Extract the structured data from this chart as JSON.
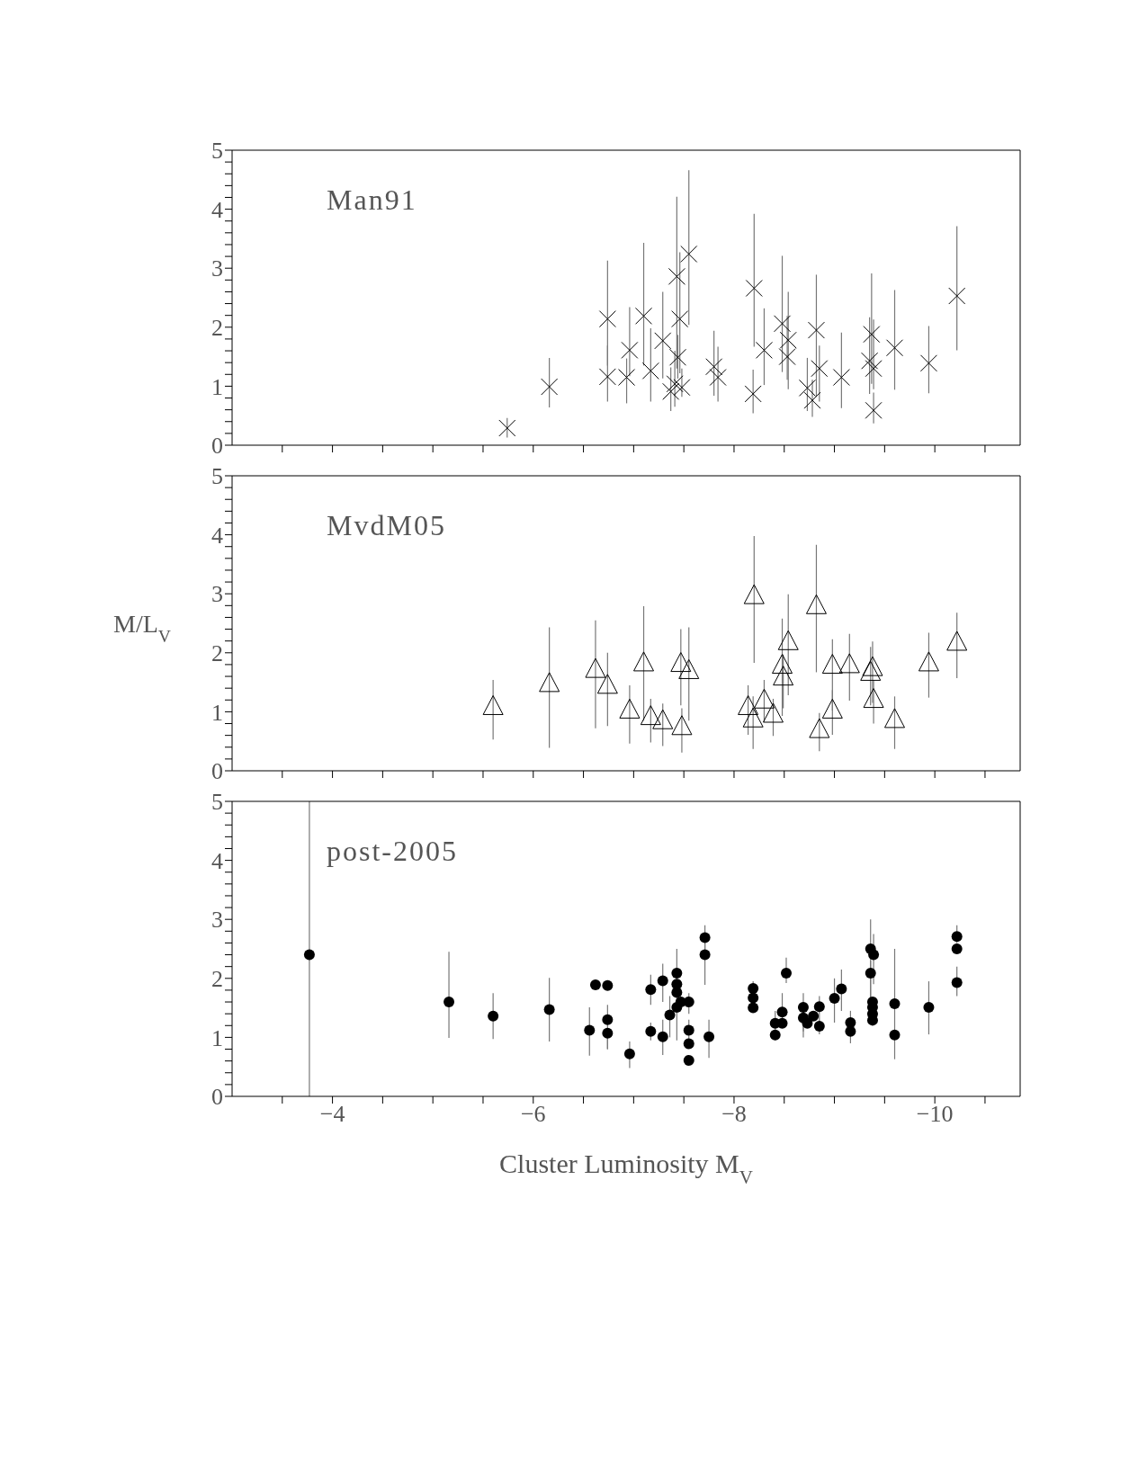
{
  "chart_data": [
    {
      "type": "scatter",
      "marker": "cross",
      "tick_labels": "y",
      "xlim": [
        -3,
        -10.85
      ],
      "ylim": [
        0,
        5
      ],
      "xticks": [
        {
          "value": -3.5,
          "label": null
        },
        -4,
        {
          "value": -4.5,
          "label": null
        },
        {
          "value": -5,
          "label": null
        },
        {
          "value": -5.5,
          "label": null
        },
        -6,
        {
          "value": -6.5,
          "label": null
        },
        {
          "value": -7,
          "label": null
        },
        {
          "value": -7.5,
          "label": null
        },
        -8,
        {
          "value": -8.5,
          "label": null
        },
        {
          "value": -9,
          "label": null
        },
        {
          "value": -9.5,
          "label": null
        },
        -10,
        {
          "value": -10.5,
          "label": null
        }
      ],
      "yticks": [
        0,
        {
          "value": 0.2,
          "label": null
        },
        {
          "value": 0.4,
          "label": null
        },
        {
          "value": 0.6,
          "label": null
        },
        {
          "value": 0.8,
          "label": null
        },
        1,
        {
          "value": 1.2,
          "label": null
        },
        {
          "value": 1.4,
          "label": null
        },
        {
          "value": 1.6,
          "label": null
        },
        {
          "value": 1.8,
          "label": null
        },
        2,
        {
          "value": 2.2,
          "label": null
        },
        {
          "value": 2.4,
          "label": null
        },
        {
          "value": 2.6,
          "label": null
        },
        {
          "value": 2.8,
          "label": null
        },
        3,
        {
          "value": 3.2,
          "label": null
        },
        {
          "value": 3.4,
          "label": null
        },
        {
          "value": 3.6,
          "label": null
        },
        {
          "value": 3.8,
          "label": null
        },
        4,
        {
          "value": 4.2,
          "label": null
        },
        {
          "value": 4.4,
          "label": null
        },
        {
          "value": 4.6,
          "label": null
        },
        {
          "value": 4.8,
          "label": null
        },
        5
      ],
      "series": [
        {
          "name": "Man91",
          "color": "#000000",
          "x": [
            -5.74,
            -6.16,
            -6.74,
            -6.74,
            -6.93,
            -6.96,
            -7.1,
            -7.17,
            -7.29,
            -7.37,
            -7.41,
            -7.43,
            -7.44,
            -7.46,
            -7.48,
            -7.55,
            -7.8,
            -7.84,
            -8.19,
            -8.2,
            -8.3,
            -8.48,
            -8.54,
            -8.53,
            -8.73,
            -8.78,
            -8.82,
            -8.85,
            -9.07,
            -9.35,
            -9.37,
            -9.39,
            -9.39,
            -9.6,
            -9.94,
            -10.22
          ],
          "values": [
            0.29,
            0.99,
            2.14,
            1.16,
            1.15,
            1.61,
            2.19,
            1.26,
            1.77,
            0.91,
            1.04,
            2.86,
            1.49,
            2.14,
            0.98,
            3.24,
            1.33,
            1.15,
            0.87,
            2.66,
            1.61,
            2.06,
            1.78,
            1.5,
            0.97,
            0.76,
            1.95,
            1.3,
            1.15,
            1.43,
            1.88,
            1.3,
            0.59,
            1.65,
            1.39,
            2.53
          ],
          "errors": [
            [
              0.13,
              0.46
            ],
            [
              0.64,
              1.48
            ],
            [
              1.35,
              3.13
            ],
            [
              0.74,
              1.69
            ],
            [
              0.71,
              1.47
            ],
            [
              1.17,
              2.34
            ],
            [
              1.35,
              3.43
            ],
            [
              0.74,
              1.98
            ],
            [
              1.13,
              2.6
            ],
            [
              0.58,
              1.32
            ],
            [
              0.65,
              1.6
            ],
            [
              1.3,
              4.21
            ],
            [
              1.13,
              1.87
            ],
            [
              1.22,
              3.27
            ],
            [
              0.82,
              1.3
            ],
            [
              2.04,
              4.66
            ],
            [
              0.84,
              1.94
            ],
            [
              0.74,
              1.67
            ],
            [
              0.54,
              1.28
            ],
            [
              1.67,
              3.92
            ],
            [
              1.02,
              2.32
            ],
            [
              1.24,
              3.21
            ],
            [
              0.95,
              2.6
            ],
            [
              1.11,
              2.19
            ],
            [
              0.58,
              1.48
            ],
            [
              0.48,
              1.11
            ],
            [
              0.82,
              2.89
            ],
            [
              0.74,
              1.69
            ],
            [
              0.63,
              1.91
            ],
            [
              0.87,
              2.17
            ],
            [
              1.04,
              2.91
            ],
            [
              0.95,
              2.13
            ],
            [
              0.37,
              0.89
            ],
            [
              0.94,
              2.63
            ],
            [
              0.88,
              2.02
            ],
            [
              1.61,
              3.71
            ]
          ]
        }
      ]
    },
    {
      "type": "scatter",
      "marker": "triangle",
      "tick_labels": "y",
      "ylabel": "M/L$_{V}$",
      "xlim": [
        -3,
        -10.85
      ],
      "ylim": [
        0,
        5
      ],
      "xticks": [
        {
          "value": -3.5,
          "label": null
        },
        -4,
        {
          "value": -4.5,
          "label": null
        },
        {
          "value": -5,
          "label": null
        },
        {
          "value": -5.5,
          "label": null
        },
        -6,
        {
          "value": -6.5,
          "label": null
        },
        {
          "value": -7,
          "label": null
        },
        {
          "value": -7.5,
          "label": null
        },
        -8,
        {
          "value": -8.5,
          "label": null
        },
        {
          "value": -9,
          "label": null
        },
        {
          "value": -9.5,
          "label": null
        },
        -10,
        {
          "value": -10.5,
          "label": null
        }
      ],
      "yticks": [
        0,
        {
          "value": 0.2,
          "label": null
        },
        {
          "value": 0.4,
          "label": null
        },
        {
          "value": 0.6,
          "label": null
        },
        {
          "value": 0.8,
          "label": null
        },
        1,
        {
          "value": 1.2,
          "label": null
        },
        {
          "value": 1.4,
          "label": null
        },
        {
          "value": 1.6,
          "label": null
        },
        {
          "value": 1.8,
          "label": null
        },
        2,
        {
          "value": 2.2,
          "label": null
        },
        {
          "value": 2.4,
          "label": null
        },
        {
          "value": 2.6,
          "label": null
        },
        {
          "value": 2.8,
          "label": null
        },
        3,
        {
          "value": 3.2,
          "label": null
        },
        {
          "value": 3.4,
          "label": null
        },
        {
          "value": 3.6,
          "label": null
        },
        {
          "value": 3.8,
          "label": null
        },
        4,
        {
          "value": 4.2,
          "label": null
        },
        {
          "value": 4.4,
          "label": null
        },
        {
          "value": 4.6,
          "label": null
        },
        {
          "value": 4.8,
          "label": null
        },
        5
      ],
      "series": [
        {
          "name": "MvdM05",
          "color": "#000000",
          "x": [
            -5.6,
            -6.16,
            -6.62,
            -6.74,
            -6.96,
            -7.1,
            -7.17,
            -7.29,
            -7.47,
            -7.48,
            -7.55,
            -8.14,
            -8.19,
            -8.2,
            -8.3,
            -8.39,
            -8.48,
            -8.49,
            -8.54,
            -8.82,
            -8.85,
            -8.98,
            -8.98,
            -9.15,
            -9.36,
            -9.38,
            -9.39,
            -9.6,
            -9.94,
            -10.22
          ],
          "values": [
            1.06,
            1.45,
            1.69,
            1.42,
            1.0,
            1.8,
            0.89,
            0.82,
            1.79,
            0.72,
            1.67,
            1.06,
            0.85,
            2.94,
            1.17,
            0.93,
            1.76,
            1.56,
            2.16,
            2.77,
            0.67,
            1.76,
            1.0,
            1.77,
            1.64,
            1.72,
            1.18,
            0.84,
            1.8,
            2.15
          ],
          "errors": [
            [
              0.53,
              1.54
            ],
            [
              0.39,
              2.43
            ],
            [
              0.72,
              2.55
            ],
            [
              0.76,
              2.0
            ],
            [
              0.46,
              1.45
            ],
            [
              0.85,
              2.79
            ],
            [
              0.48,
              1.22
            ],
            [
              0.42,
              1.14
            ],
            [
              1.11,
              2.4
            ],
            [
              0.31,
              1.06
            ],
            [
              0.85,
              2.43
            ],
            [
              0.61,
              1.45
            ],
            [
              0.37,
              1.26
            ],
            [
              1.83,
              3.98
            ],
            [
              0.83,
              1.54
            ],
            [
              0.59,
              1.22
            ],
            [
              0.93,
              2.58
            ],
            [
              1.06,
              1.97
            ],
            [
              1.28,
              2.99
            ],
            [
              1.67,
              3.83
            ],
            [
              0.33,
              0.98
            ],
            [
              1.02,
              2.23
            ],
            [
              0.61,
              1.37
            ],
            [
              1.19,
              2.32
            ],
            [
              1.11,
              2.1
            ],
            [
              1.15,
              2.19
            ],
            [
              0.8,
              1.54
            ],
            [
              0.37,
              1.26
            ],
            [
              1.24,
              2.34
            ],
            [
              1.57,
              2.68
            ]
          ]
        }
      ]
    },
    {
      "type": "scatter",
      "marker": "circle",
      "xlabel": "Cluster Luminosity M$_{V}$",
      "xlim": [
        -3,
        -10.85
      ],
      "ylim": [
        0,
        5
      ],
      "xticks": [
        {
          "value": -3.5,
          "label": null
        },
        -4,
        {
          "value": -4.5,
          "label": null
        },
        {
          "value": -5,
          "label": null
        },
        {
          "value": -5.5,
          "label": null
        },
        -6,
        {
          "value": -6.5,
          "label": null
        },
        {
          "value": -7,
          "label": null
        },
        {
          "value": -7.5,
          "label": null
        },
        -8,
        {
          "value": -8.5,
          "label": null
        },
        {
          "value": -9,
          "label": null
        },
        {
          "value": -9.5,
          "label": null
        },
        -10,
        {
          "value": -10.5,
          "label": null
        }
      ],
      "yticks": [
        0,
        {
          "value": 0.2,
          "label": null
        },
        {
          "value": 0.4,
          "label": null
        },
        {
          "value": 0.6,
          "label": null
        },
        {
          "value": 0.8,
          "label": null
        },
        1,
        {
          "value": 1.2,
          "label": null
        },
        {
          "value": 1.4,
          "label": null
        },
        {
          "value": 1.6,
          "label": null
        },
        {
          "value": 1.8,
          "label": null
        },
        2,
        {
          "value": 2.2,
          "label": null
        },
        {
          "value": 2.4,
          "label": null
        },
        {
          "value": 2.6,
          "label": null
        },
        {
          "value": 2.8,
          "label": null
        },
        3,
        {
          "value": 3.2,
          "label": null
        },
        {
          "value": 3.4,
          "label": null
        },
        {
          "value": 3.6,
          "label": null
        },
        {
          "value": 3.8,
          "label": null
        },
        4,
        {
          "value": 4.2,
          "label": null
        },
        {
          "value": 4.4,
          "label": null
        },
        {
          "value": 4.6,
          "label": null
        },
        {
          "value": 4.8,
          "label": null
        },
        5
      ],
      "series": [
        {
          "name": "post-2005",
          "color": "#000000",
          "x": [
            -3.77,
            -5.16,
            -5.6,
            -6.16,
            -6.56,
            -6.62,
            -6.74,
            -6.74,
            -6.74,
            -6.96,
            -7.17,
            -7.17,
            -7.29,
            -7.29,
            -7.36,
            -7.43,
            -7.43,
            -7.43,
            -7.43,
            -7.47,
            -7.55,
            -7.55,
            -7.55,
            -7.55,
            -7.71,
            -7.71,
            -7.75,
            -8.19,
            -8.19,
            -8.19,
            -8.41,
            -8.41,
            -8.48,
            -8.48,
            -8.52,
            -8.69,
            -8.69,
            -8.73,
            -8.79,
            -8.85,
            -8.85,
            -9.0,
            -9.07,
            -9.16,
            -9.16,
            -9.36,
            -9.39,
            -9.36,
            -9.38,
            -9.38,
            -9.38,
            -9.38,
            -9.6,
            -9.6,
            -9.94,
            -10.22,
            -10.22,
            -10.22
          ],
          "values": [
            2.4,
            1.6,
            1.36,
            1.47,
            1.12,
            1.89,
            1.88,
            1.3,
            1.07,
            0.72,
            1.81,
            1.1,
            1.96,
            1.01,
            1.38,
            2.09,
            1.9,
            1.76,
            1.51,
            1.6,
            1.6,
            1.12,
            0.89,
            0.61,
            2.69,
            2.4,
            1.01,
            1.83,
            1.67,
            1.5,
            1.24,
            1.04,
            1.43,
            1.24,
            2.09,
            1.51,
            1.33,
            1.24,
            1.36,
            1.52,
            1.19,
            1.66,
            1.82,
            1.25,
            1.1,
            2.5,
            2.4,
            2.09,
            1.6,
            1.51,
            1.4,
            1.29,
            1.57,
            1.04,
            1.51,
            2.71,
            2.5,
            1.93
          ],
          "errors": [
            [
              0,
              5
            ],
            [
              0.99,
              2.45
            ],
            [
              0.97,
              1.75
            ],
            [
              0.93,
              2.01
            ],
            [
              0.69,
              1.51
            ],
            null,
            null,
            [
              0.8,
              1.55
            ],
            [
              0.8,
              1.07
            ],
            [
              0.48,
              0.93
            ],
            [
              1.55,
              2.06
            ],
            [
              0.95,
              1.25
            ],
            [
              1.6,
              2.25
            ],
            [
              0.7,
              1.3
            ],
            [
              1.0,
              1.7
            ],
            [
              1.45,
              2.5
            ],
            null,
            null,
            [
              0.95,
              1.51
            ],
            null,
            [
              1.4,
              1.75
            ],
            [
              0.95,
              1.3
            ],
            null,
            null,
            [
              2.5,
              2.9
            ],
            [
              1.89,
              2.6
            ],
            [
              0.65,
              1.3
            ],
            [
              1.6,
              1.95
            ],
            null,
            null,
            [
              0.95,
              1.45
            ],
            null,
            [
              1.2,
              1.75
            ],
            null,
            [
              1.92,
              2.35
            ],
            [
              1.1,
              1.75
            ],
            [
              1.0,
              1.55
            ],
            null,
            null,
            [
              1.05,
              1.7
            ],
            null,
            [
              1.25,
              2.0
            ],
            [
              1.45,
              2.15
            ],
            [
              0.9,
              1.45
            ],
            null,
            [
              1.5,
              3.0
            ],
            [
              1.9,
              2.75
            ],
            [
              1.65,
              2.3
            ],
            null,
            null,
            null,
            null,
            [
              0.63,
              2.5
            ],
            null,
            [
              1.05,
              1.95
            ],
            [
              2.6,
              2.9
            ],
            null,
            [
              1.7,
              2.2
            ]
          ]
        }
      ]
    }
  ]
}
